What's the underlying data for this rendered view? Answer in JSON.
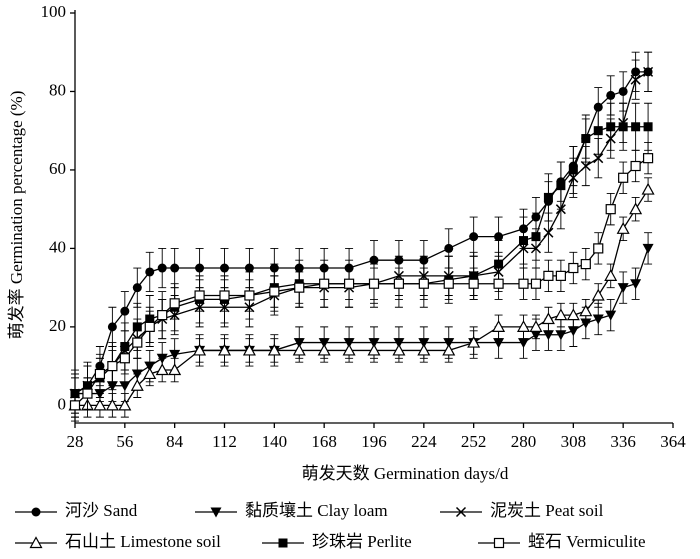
{
  "chart_data": {
    "type": "line",
    "xlabel": "萌发天数 Germination days/d",
    "ylabel": "萌发率 Germination percentage (%)",
    "x": [
      28,
      35,
      42,
      49,
      56,
      63,
      70,
      77,
      84,
      98,
      112,
      126,
      140,
      154,
      168,
      182,
      196,
      210,
      224,
      238,
      252,
      266,
      280,
      287,
      294,
      301,
      308,
      315,
      322,
      329,
      336,
      343,
      350
    ],
    "xlim": [
      28,
      364
    ],
    "xticks": [
      28,
      56,
      84,
      112,
      140,
      168,
      196,
      224,
      252,
      280,
      308,
      336,
      364
    ],
    "ylim": [
      -4.5,
      100
    ],
    "yticks": [
      0,
      20,
      40,
      60,
      80,
      100
    ],
    "legend": "bottom",
    "series": [
      {
        "name": "河沙 Sand",
        "marker": "circle",
        "color": "#000",
        "error": 5,
        "values": [
          3,
          5,
          10,
          20,
          24,
          30,
          34,
          35,
          35,
          35,
          35,
          35,
          35,
          35,
          35,
          35,
          37,
          37,
          37,
          40,
          43,
          43,
          45,
          48,
          52,
          57,
          61,
          68,
          76,
          79,
          80,
          85,
          85
        ]
      },
      {
        "name": "黏质壤土 Clay loam",
        "marker": "triangle-down",
        "color": "#000",
        "error": 4,
        "values": [
          3,
          3,
          3,
          5,
          5,
          8,
          10,
          12,
          13,
          14,
          14,
          14,
          14,
          16,
          16,
          16,
          16,
          16,
          16,
          16,
          16,
          16,
          16,
          18,
          18,
          18,
          19,
          21,
          22,
          23,
          30,
          31,
          40
        ]
      },
      {
        "name": "泥炭土 Peat soil",
        "marker": "x",
        "color": "#000",
        "error": 5,
        "values": [
          3,
          5,
          7,
          10,
          14,
          17,
          20,
          22,
          23,
          25,
          25,
          25,
          28,
          30,
          30,
          30,
          31,
          33,
          33,
          33,
          33,
          34,
          40,
          40,
          44,
          50,
          58,
          61,
          63,
          68,
          72,
          83,
          85
        ]
      },
      {
        "name": "石山土 Limestone soil",
        "marker": "triangle-open",
        "color": "#000",
        "error": 3,
        "values": [
          0,
          0,
          0,
          0,
          0,
          5,
          8,
          9,
          9,
          14,
          14,
          14,
          14,
          14,
          14,
          14,
          14,
          14,
          14,
          14,
          16,
          20,
          20,
          20,
          22,
          23,
          23,
          24,
          28,
          33,
          45,
          50,
          55
        ]
      },
      {
        "name": "珍珠岩 Perlite",
        "marker": "square",
        "color": "#000",
        "error": 6,
        "values": [
          3,
          5,
          7,
          10,
          15,
          20,
          22,
          23,
          25,
          27,
          27,
          28,
          30,
          31,
          31,
          31,
          31,
          31,
          31,
          32,
          33,
          36,
          42,
          43,
          53,
          56,
          60,
          68,
          70,
          71,
          71,
          71,
          71
        ]
      },
      {
        "name": "蛭石 Vermiculite",
        "marker": "square-open",
        "color": "#000",
        "error": 4,
        "values": [
          0,
          3,
          8,
          10,
          12,
          16,
          20,
          23,
          26,
          28,
          28,
          28,
          29,
          30,
          31,
          31,
          31,
          31,
          31,
          31,
          31,
          31,
          31,
          31,
          33,
          33,
          35,
          36,
          40,
          50,
          58,
          61,
          63
        ]
      }
    ]
  }
}
